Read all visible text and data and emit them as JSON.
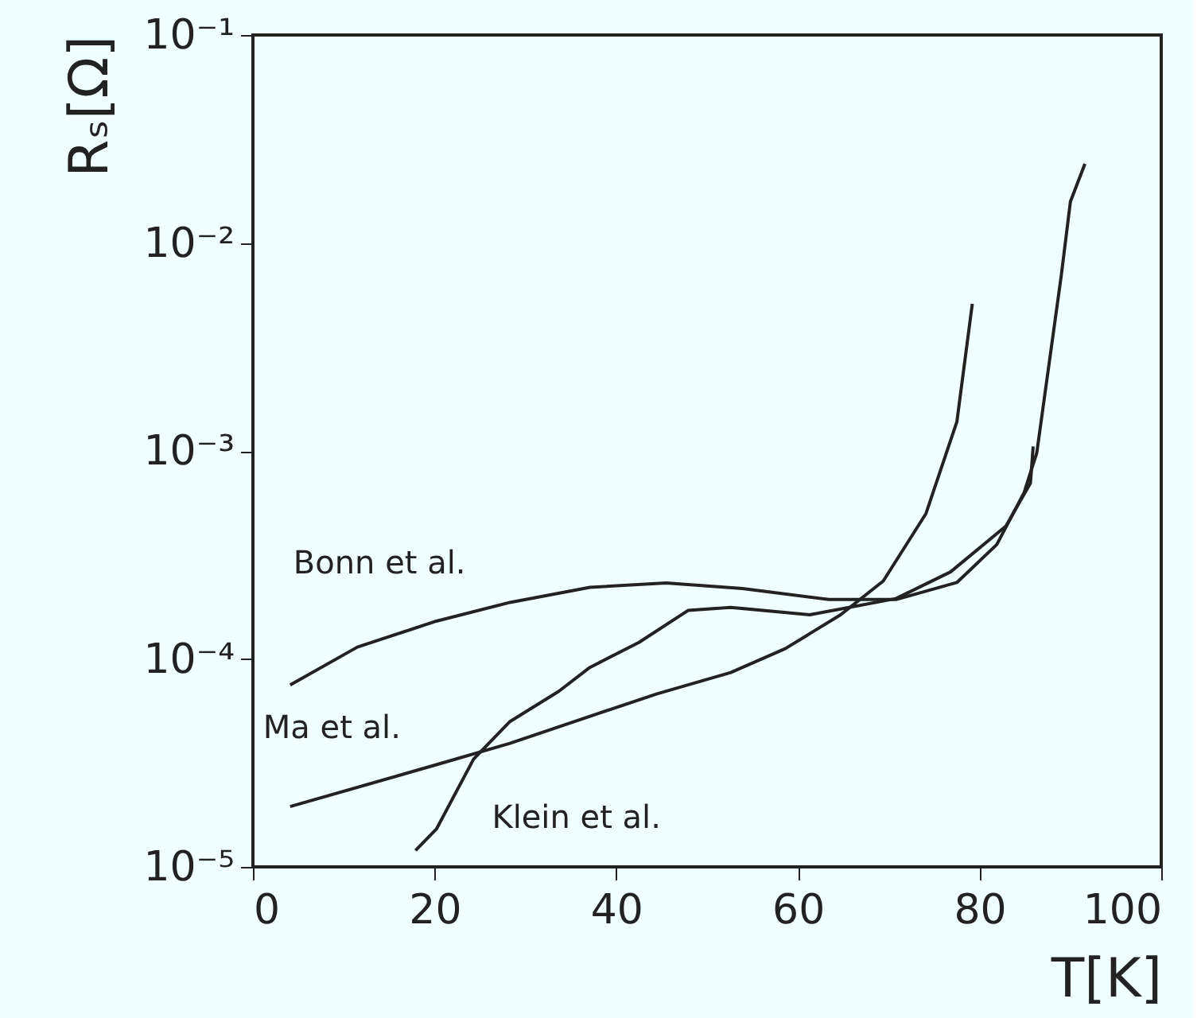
{
  "chart_data": {
    "type": "line",
    "xlabel": "T[K]",
    "ylabel": "Rₛ[Ω]",
    "log": "y",
    "grid": false,
    "legend": false,
    "marker": "none",
    "line_style": "solid",
    "xlim": [
      0,
      100
    ],
    "xticks": [
      0,
      20,
      40,
      60,
      80,
      100
    ],
    "ylim": [
      1e-05,
      0.1
    ],
    "yticks": [
      {
        "value": 1e-05,
        "label": "10⁻⁵"
      },
      {
        "value": 0.0001,
        "label": "10⁻⁴"
      },
      {
        "value": 0.001,
        "label": "10⁻³"
      },
      {
        "value": 0.01,
        "label": "10⁻²"
      },
      {
        "value": 0.1,
        "label": "10⁻¹"
      }
    ],
    "series": [
      {
        "name": "Bonn et al.",
        "color": "#222222",
        "x": [
          4.1,
          11.5,
          20.2,
          28.3,
          37.1,
          45.5,
          53.9,
          63.4,
          70.8,
          77.5,
          81.9,
          84.9,
          86.3,
          89,
          90,
          91.6
        ],
        "values": [
          7.5e-05,
          0.000114,
          0.000152,
          0.000187,
          0.000221,
          0.000232,
          0.000218,
          0.000193,
          0.000193,
          0.000233,
          0.000355,
          0.00063,
          0.00098,
          0.007,
          0.0158,
          0.024
        ]
      },
      {
        "name": "Ma et al.",
        "color": "#222222",
        "x": [
          4.1,
          20.2,
          28.3,
          44.5,
          52.6,
          58.6,
          64.7,
          69.4,
          74.1,
          77.5,
          79.2
        ],
        "values": [
          1.95e-05,
          3.1e-05,
          3.93e-05,
          6.8e-05,
          8.6e-05,
          0.000112,
          0.000163,
          0.000237,
          0.0005,
          0.00138,
          0.0051
        ]
      },
      {
        "name": "Klein et al.",
        "color": "#222222",
        "x": [
          17.9,
          20.2,
          24.3,
          28.3,
          33.7,
          37.1,
          42.5,
          47.9,
          52.6,
          61.3,
          70.8,
          76.8,
          82.9,
          85.6,
          85.9
        ],
        "values": [
          1.2e-05,
          1.52e-05,
          3.3e-05,
          5e-05,
          7e-05,
          9.1e-05,
          0.00012,
          0.000171,
          0.000177,
          0.000163,
          0.000195,
          0.000262,
          0.000435,
          0.0007,
          0.00105
        ]
      }
    ]
  }
}
